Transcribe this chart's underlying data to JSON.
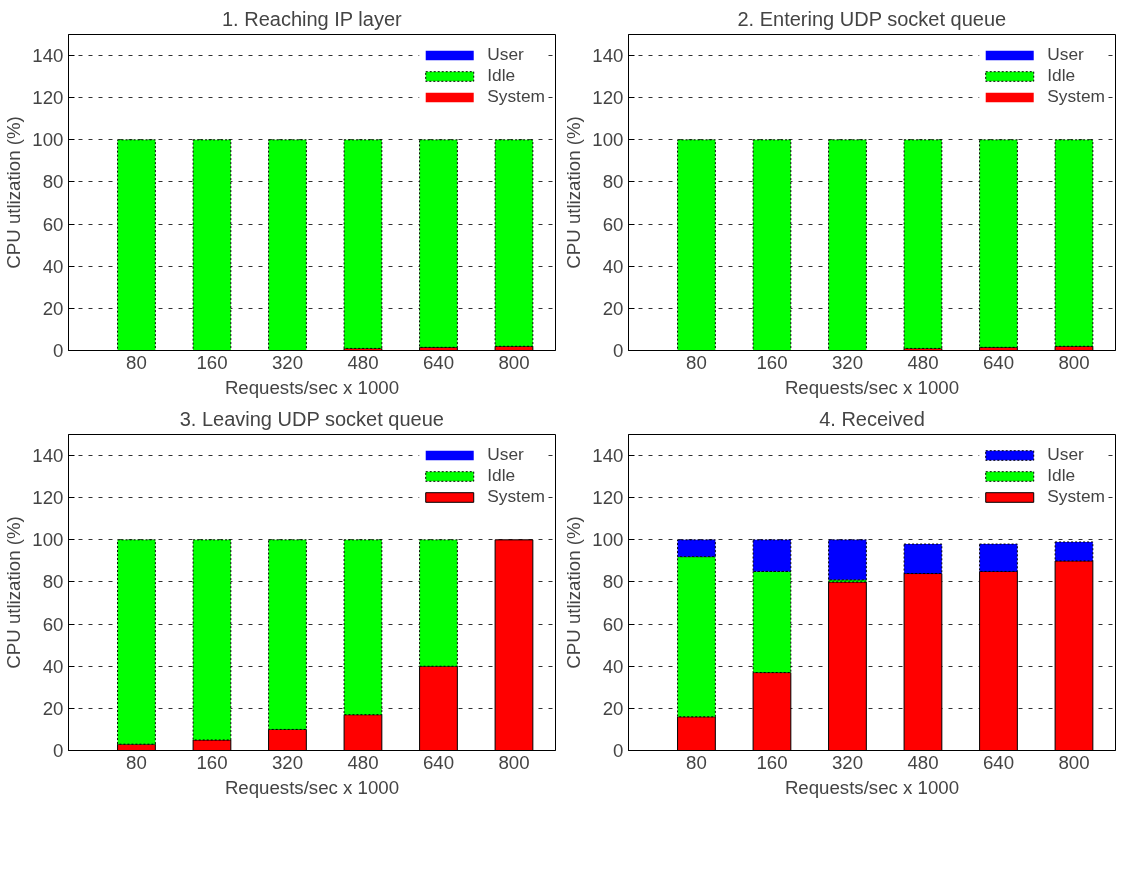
{
  "chart_data": [
    {
      "type": "bar",
      "title": "1. Reaching IP layer",
      "xlabel": "Requests/sec x 1000",
      "ylabel": "CPU utlization (%)",
      "categories": [
        "80",
        "160",
        "320",
        "480",
        "640",
        "800"
      ],
      "stacked": true,
      "ylim": [
        0,
        150
      ],
      "yticks": [
        0,
        20,
        40,
        60,
        80,
        100,
        120,
        140
      ],
      "grid": "y",
      "legend": "top right",
      "series": [
        {
          "name": "System",
          "color": "#ff0000",
          "values": [
            0,
            0,
            0,
            1,
            1.5,
            2
          ]
        },
        {
          "name": "Idle",
          "color": "#00ff00",
          "values": [
            100,
            100,
            100,
            99,
            98.5,
            98
          ]
        },
        {
          "name": "User",
          "color": "#0000ff",
          "values": [
            0,
            0,
            0,
            0,
            0,
            0
          ]
        }
      ]
    },
    {
      "type": "bar",
      "title": "2. Entering UDP socket queue",
      "xlabel": "Requests/sec x 1000",
      "ylabel": "CPU utlization (%)",
      "categories": [
        "80",
        "160",
        "320",
        "480",
        "640",
        "800"
      ],
      "stacked": true,
      "ylim": [
        0,
        150
      ],
      "yticks": [
        0,
        20,
        40,
        60,
        80,
        100,
        120,
        140
      ],
      "grid": "y",
      "legend": "top right",
      "series": [
        {
          "name": "System",
          "color": "#ff0000",
          "values": [
            0,
            0,
            0,
            1,
            1.5,
            2
          ]
        },
        {
          "name": "Idle",
          "color": "#00ff00",
          "values": [
            100,
            100,
            100,
            99,
            98.5,
            98
          ]
        },
        {
          "name": "User",
          "color": "#0000ff",
          "values": [
            0,
            0,
            0,
            0,
            0,
            0
          ]
        }
      ]
    },
    {
      "type": "bar",
      "title": "3. Leaving UDP socket queue",
      "xlabel": "Requests/sec x 1000",
      "ylabel": "CPU utlization (%)",
      "categories": [
        "80",
        "160",
        "320",
        "480",
        "640",
        "800"
      ],
      "stacked": true,
      "ylim": [
        0,
        150
      ],
      "yticks": [
        0,
        20,
        40,
        60,
        80,
        100,
        120,
        140
      ],
      "grid": "y",
      "legend": "top right",
      "series": [
        {
          "name": "System",
          "color": "#ff0000",
          "values": [
            3,
            5,
            10,
            17,
            40,
            100
          ]
        },
        {
          "name": "Idle",
          "color": "#00ff00",
          "values": [
            97,
            95,
            90,
            83,
            60,
            0
          ]
        },
        {
          "name": "User",
          "color": "#0000ff",
          "values": [
            0,
            0,
            0,
            0,
            0,
            0
          ]
        }
      ]
    },
    {
      "type": "bar",
      "title": "4. Received",
      "xlabel": "Requests/sec x 1000",
      "ylabel": "CPU utlization (%)",
      "categories": [
        "80",
        "160",
        "320",
        "480",
        "640",
        "800"
      ],
      "stacked": true,
      "ylim": [
        0,
        150
      ],
      "yticks": [
        0,
        20,
        40,
        60,
        80,
        100,
        120,
        140
      ],
      "grid": "y",
      "legend": "top right",
      "series": [
        {
          "name": "System",
          "color": "#ff0000",
          "values": [
            16,
            37,
            80,
            84,
            85,
            90
          ]
        },
        {
          "name": "Idle",
          "color": "#00ff00",
          "values": [
            76,
            48,
            1,
            0,
            0,
            0
          ]
        },
        {
          "name": "User",
          "color": "#0000ff",
          "values": [
            8,
            15,
            19,
            14,
            13,
            9
          ]
        }
      ]
    }
  ]
}
